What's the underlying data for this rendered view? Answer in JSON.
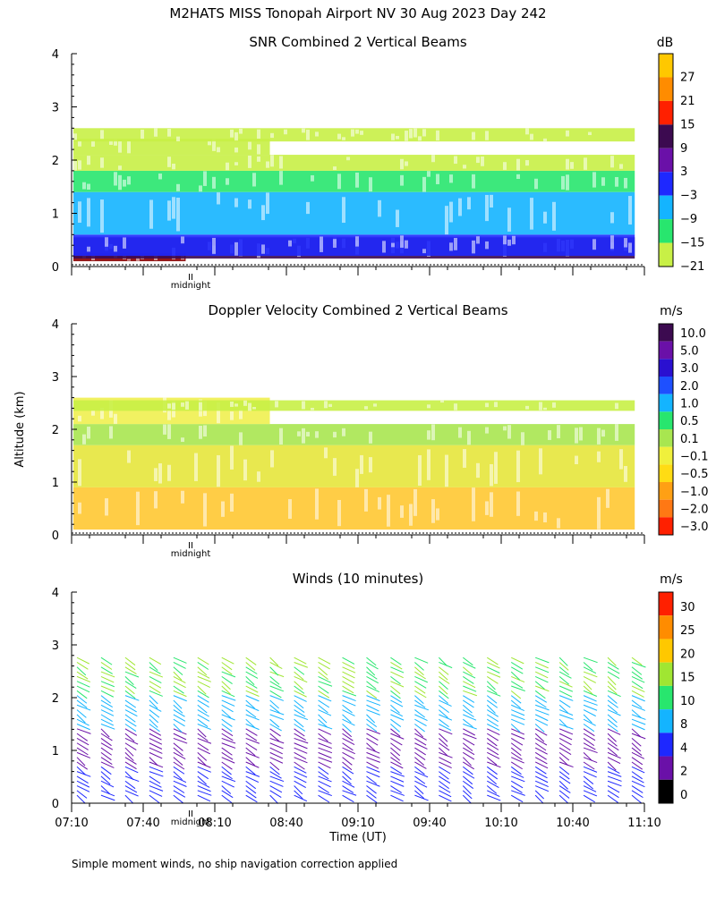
{
  "title": "M2HATS MISS Tonopah Airport NV  30 Aug 2023 Day 242",
  "ylabel": "Altitude (km)",
  "xlabel": "Time (UT)",
  "midnight_label": "midnight",
  "footnote": "Simple moment winds, no ship navigation correction applied",
  "chart_data": [
    {
      "type": "heatmap",
      "title": "SNR Combined 2 Vertical Beams",
      "yticks": [
        "0",
        "1",
        "2",
        "3",
        "4"
      ],
      "ylim": [
        0,
        4
      ],
      "colorbar": {
        "unit": "dB",
        "labels": [
          "27",
          "21",
          "15",
          "9",
          "3",
          "−3",
          "−9",
          "−15",
          "−21"
        ],
        "colors": [
          "#ffc800",
          "#ff8c00",
          "#ff2000",
          "#3c0a50",
          "#6a10a8",
          "#1e28ff",
          "#14b4ff",
          "#28e66e",
          "#c8f046"
        ]
      },
      "layers": [
        {
          "from": 0.1,
          "to": 0.25,
          "color": "#8a0000",
          "end": 0.2
        },
        {
          "from": 0.15,
          "to": 0.55,
          "color": "#3c0a50",
          "end": 1.0
        },
        {
          "from": 0.2,
          "to": 0.6,
          "color": "#1e28ff",
          "end": 1.0
        },
        {
          "from": 0.6,
          "to": 1.4,
          "color": "#14b4ff",
          "end": 1.0
        },
        {
          "from": 1.4,
          "to": 1.8,
          "color": "#28e66e",
          "end": 1.0
        },
        {
          "from": 1.8,
          "to": 2.1,
          "color": "#c8f046",
          "end": 1.0
        },
        {
          "from": 2.1,
          "to": 2.4,
          "color": "#c8f046",
          "end": 0.35
        },
        {
          "from": 2.35,
          "to": 2.6,
          "color": "#c8f046",
          "end": 1.0
        }
      ]
    },
    {
      "type": "heatmap",
      "title": "Doppler Velocity Combined 2 Vertical Beams",
      "yticks": [
        "0",
        "1",
        "2",
        "3",
        "4"
      ],
      "ylim": [
        0,
        4
      ],
      "colorbar": {
        "unit": "m/s",
        "labels": [
          "10.0",
          "5.0",
          "3.0",
          "2.0",
          "1.0",
          "0.5",
          "0.1",
          "−0.1",
          "−0.5",
          "−1.0",
          "−2.0",
          "−3.0"
        ],
        "colors": [
          "#3c0a50",
          "#6a10a8",
          "#2a10d0",
          "#1e50ff",
          "#14b4ff",
          "#28e66e",
          "#a8e650",
          "#f0f03c",
          "#ffdc14",
          "#ffa014",
          "#ff7814",
          "#ff2000"
        ]
      },
      "layers": [
        {
          "from": 0.1,
          "to": 0.9,
          "color": "#ffc832",
          "end": 1.0
        },
        {
          "from": 0.9,
          "to": 1.7,
          "color": "#e6e63c",
          "end": 1.0
        },
        {
          "from": 1.7,
          "to": 2.1,
          "color": "#a8e650",
          "end": 1.0
        },
        {
          "from": 2.1,
          "to": 2.6,
          "color": "#f0f050",
          "end": 0.35
        },
        {
          "from": 2.35,
          "to": 2.55,
          "color": "#c8f046",
          "end": 1.0
        }
      ]
    },
    {
      "type": "wind-barbs",
      "title": "Winds (10 minutes)",
      "yticks": [
        "0",
        "1",
        "2",
        "3",
        "4"
      ],
      "ylim": [
        0,
        4
      ],
      "xticks": [
        "07:10",
        "07:40",
        "08:10",
        "08:40",
        "09:10",
        "09:40",
        "10:10",
        "10:40",
        "11:10"
      ],
      "colorbar": {
        "unit": "m/s",
        "labels": [
          "30",
          "25",
          "20",
          "15",
          "10",
          "8",
          "4",
          "2",
          "0"
        ],
        "colors": [
          "#ff2000",
          "#ff8c00",
          "#ffc800",
          "#a0e632",
          "#28e66e",
          "#14b4ff",
          "#1e28ff",
          "#6a10a8",
          "#000000"
        ]
      },
      "profiles": 24,
      "top_km": 2.8
    }
  ]
}
